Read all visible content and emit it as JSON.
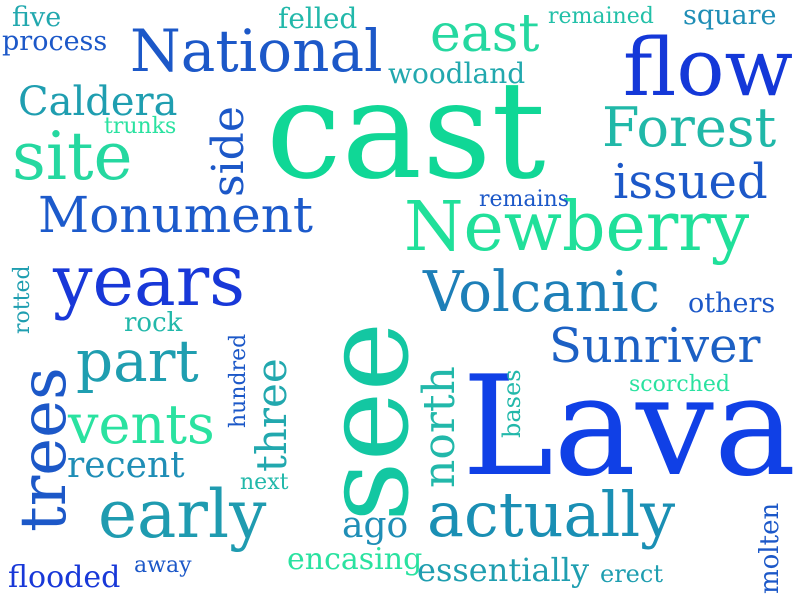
{
  "words": [
    {
      "text": "cast",
      "color": "#10d796",
      "rotated": false
    },
    {
      "text": "Lava",
      "color": "#1040e6",
      "rotated": false
    },
    {
      "text": "see",
      "color": "#13c7a2",
      "rotated": true
    },
    {
      "text": "Newberry",
      "color": "#20e09a",
      "rotated": false
    },
    {
      "text": "flow",
      "color": "#1438d8",
      "rotated": false
    },
    {
      "text": "actually",
      "color": "#1a8fb4",
      "rotated": false
    },
    {
      "text": "Volcanic",
      "color": "#1d7fb8",
      "rotated": false
    },
    {
      "text": "years",
      "color": "#1838d8",
      "rotated": false
    },
    {
      "text": "National",
      "color": "#1c58c8",
      "rotated": false
    },
    {
      "text": "Monument",
      "color": "#1c5acb",
      "rotated": false
    },
    {
      "text": "Forest",
      "color": "#20b8a8",
      "rotated": false
    },
    {
      "text": "site",
      "color": "#25d8a0",
      "rotated": false
    },
    {
      "text": "early",
      "color": "#1f9bb0",
      "rotated": false
    },
    {
      "text": "trees",
      "color": "#1c58c8",
      "rotated": true
    },
    {
      "text": "Sunriver",
      "color": "#1c60c4",
      "rotated": false
    },
    {
      "text": "issued",
      "color": "#1c58c8",
      "rotated": false
    },
    {
      "text": "east",
      "color": "#25d8a0",
      "rotated": false
    },
    {
      "text": "vents",
      "color": "#2ae2a0",
      "rotated": false
    },
    {
      "text": "part",
      "color": "#1f9eb0",
      "rotated": false
    },
    {
      "text": "north",
      "color": "#22b8aa",
      "rotated": true
    },
    {
      "text": "three",
      "color": "#22a8ae",
      "rotated": true
    },
    {
      "text": "side",
      "color": "#1c58c8",
      "rotated": true
    },
    {
      "text": "Caldera",
      "color": "#1f9eb0",
      "rotated": false
    },
    {
      "text": "recent",
      "color": "#1f8eb6",
      "rotated": false
    },
    {
      "text": "ago",
      "color": "#1f8eb6",
      "rotated": false
    },
    {
      "text": "essentially",
      "color": "#1f9eb0",
      "rotated": false
    },
    {
      "text": "encasing",
      "color": "#2ae2a0",
      "rotated": false
    },
    {
      "text": "flooded",
      "color": "#1838d8",
      "rotated": false
    },
    {
      "text": "others",
      "color": "#1c58c8",
      "rotated": false
    },
    {
      "text": "process",
      "color": "#1c58c8",
      "rotated": false
    },
    {
      "text": "woodland",
      "color": "#22a8ae",
      "rotated": false
    },
    {
      "text": "square",
      "color": "#1f8eb6",
      "rotated": false
    },
    {
      "text": "remained",
      "color": "#22c0a8",
      "rotated": false
    },
    {
      "text": "felled",
      "color": "#22b8aa",
      "rotated": false
    },
    {
      "text": "five",
      "color": "#22a8ae",
      "rotated": false
    },
    {
      "text": "trunks",
      "color": "#2ae2a0",
      "rotated": false
    },
    {
      "text": "remains",
      "color": "#1c58c8",
      "rotated": false
    },
    {
      "text": "rock",
      "color": "#22b8aa",
      "rotated": false
    },
    {
      "text": "scorched",
      "color": "#2ae2a0",
      "rotated": false
    },
    {
      "text": "next",
      "color": "#22b8aa",
      "rotated": false
    },
    {
      "text": "away",
      "color": "#1c58c8",
      "rotated": false
    },
    {
      "text": "erect",
      "color": "#1f9eb0",
      "rotated": false
    },
    {
      "text": "rotted",
      "color": "#1f9eb0",
      "rotated": true
    },
    {
      "text": "hundred",
      "color": "#1c58c8",
      "rotated": true
    },
    {
      "text": "bases",
      "color": "#22b8aa",
      "rotated": true
    },
    {
      "text": "molten",
      "color": "#1c58c8",
      "rotated": true
    }
  ]
}
